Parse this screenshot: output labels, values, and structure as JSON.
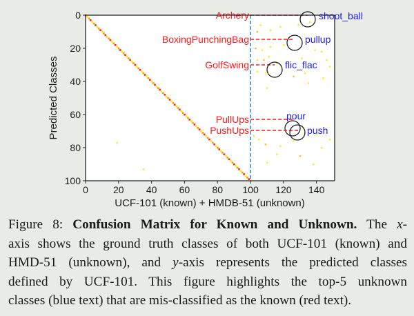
{
  "chart_data": {
    "type": "heatmap",
    "title": "",
    "xlabel": "UCF-101 (known) + HMDB-51 (unknown)",
    "ylabel": "Predicted Classes",
    "xlim": [
      0,
      151
    ],
    "ylim": [
      100,
      0
    ],
    "x_ticks": [
      "0",
      "20",
      "40",
      "60",
      "80",
      "100",
      "120",
      "140"
    ],
    "y_ticks": [
      "0",
      "20",
      "40",
      "60",
      "80",
      "100"
    ],
    "grid": false,
    "separator_x": 100,
    "separator_style": "blue dashed vertical line",
    "diagonal": {
      "from": [
        0,
        0
      ],
      "to": [
        100,
        100
      ],
      "colors": [
        "#ff2020",
        "#ff9900",
        "#ffe600"
      ]
    },
    "annotations": [
      {
        "known": "Archery",
        "unknown": "shoot_ball",
        "known_y": 1,
        "unknown_x": 134,
        "unknown_y": 1
      },
      {
        "known": "BoxingPunchingBag",
        "unknown": "pullup",
        "known_y": 16,
        "unknown_x": 126,
        "unknown_y": 16
      },
      {
        "known": "GolfSwing",
        "unknown": "flic_flac",
        "known_y": 32,
        "unknown_x": 115,
        "unknown_y": 32
      },
      {
        "known": "PullUps",
        "unknown": "pour",
        "known_y": 69,
        "unknown_x": 126,
        "unknown_y": 69
      },
      {
        "known": "PushUps",
        "unknown": "push",
        "known_y": 71,
        "unknown_x": 128,
        "unknown_y": 71
      }
    ],
    "scatter_points": [
      [
        104,
        10
      ],
      [
        106,
        6
      ],
      [
        112,
        9
      ],
      [
        118,
        7
      ],
      [
        129,
        6
      ],
      [
        136,
        4
      ],
      [
        143,
        2
      ],
      [
        103,
        20
      ],
      [
        107,
        21
      ],
      [
        112,
        19
      ],
      [
        120,
        18
      ],
      [
        139,
        21
      ],
      [
        143,
        22
      ],
      [
        104,
        27
      ],
      [
        108,
        27
      ],
      [
        111,
        25
      ],
      [
        116,
        29
      ],
      [
        131,
        26
      ],
      [
        146,
        27
      ],
      [
        104,
        34
      ],
      [
        109,
        35
      ],
      [
        126,
        37
      ],
      [
        133,
        35
      ],
      [
        144,
        38
      ],
      [
        110,
        44
      ],
      [
        135,
        41
      ],
      [
        148,
        31
      ],
      [
        105,
        75
      ],
      [
        109,
        78
      ],
      [
        102,
        73
      ],
      [
        118,
        79
      ],
      [
        126,
        76
      ],
      [
        140,
        72
      ],
      [
        148,
        75
      ],
      [
        116,
        84
      ],
      [
        130,
        85
      ],
      [
        143,
        80
      ],
      [
        110,
        89
      ],
      [
        138,
        90
      ],
      [
        19,
        77
      ],
      [
        35,
        93
      ]
    ],
    "legend": "known classes shown in red text, unknown classes in blue text"
  },
  "labels": {
    "known_color": "#ff1a1a",
    "unknown_color": "#1a1aff",
    "separator_color": "#3a8fd0"
  },
  "caption": {
    "prefix": "Figure 8: ",
    "bold": "Confusion Matrix for Known and Unknown.",
    "line1_rest": " The ",
    "x_var": "x",
    "line1_end": "-",
    "line2": "axis shows the ground truth classes of both UCF-101 (known) and",
    "line3_a": "HMD-51 (unknown), and ",
    "y_var": "y",
    "line3_b": "-axis represents the predicted classes",
    "line4": "defined by UCF-101.  This figure highlights the top-5 unknown",
    "line5": "classes (blue text) that are mis-classified as the known (red text)."
  }
}
